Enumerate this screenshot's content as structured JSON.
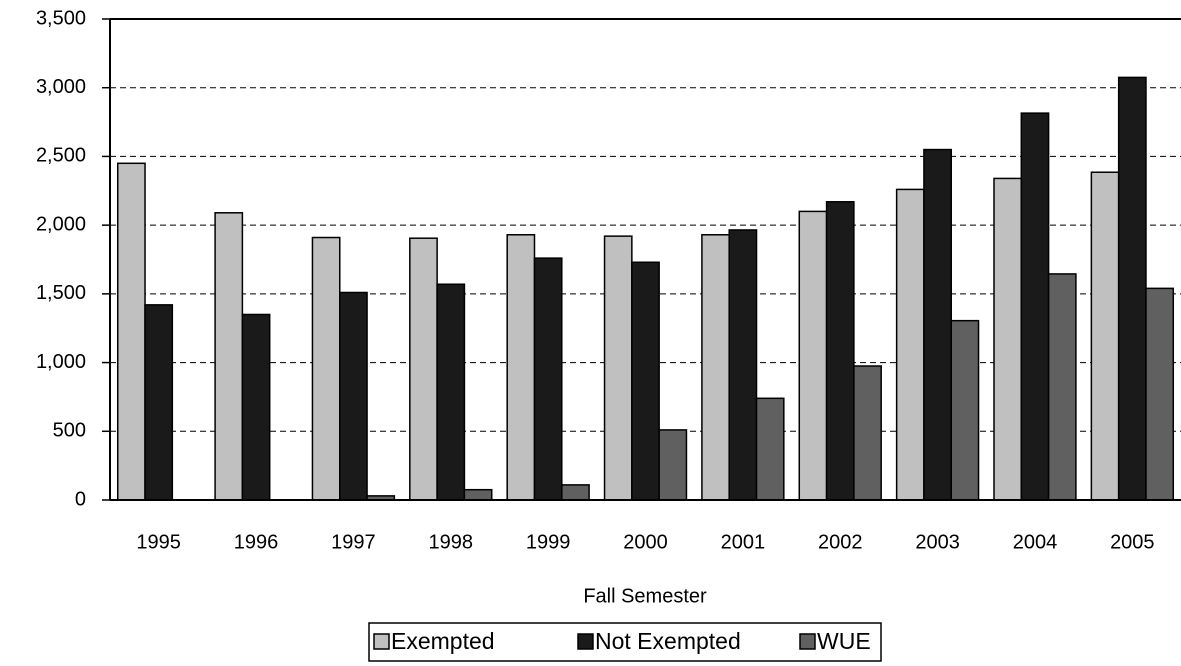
{
  "chart_data": {
    "type": "bar",
    "x_label": "Fall Semester",
    "categories": [
      "1995",
      "1996",
      "1997",
      "1998",
      "1999",
      "2000",
      "2001",
      "2002",
      "2003",
      "2004",
      "2005"
    ],
    "series": [
      {
        "name": "Exempted",
        "color": "#c0c0c0",
        "values": [
          2450,
          2090,
          1910,
          1905,
          1930,
          1920,
          1930,
          2100,
          2260,
          2340,
          2385
        ]
      },
      {
        "name": "Not Exempted",
        "color": "#1a1a1a",
        "values": [
          1420,
          1350,
          1510,
          1570,
          1760,
          1730,
          1965,
          2170,
          2550,
          2815,
          3075
        ]
      },
      {
        "name": "WUE",
        "color": "#606060",
        "values": [
          0,
          0,
          30,
          75,
          110,
          510,
          740,
          975,
          1305,
          1645,
          1540
        ]
      }
    ],
    "ylim": [
      0,
      3500
    ],
    "yticks": [
      0,
      500,
      {
        "value": 1000,
        "label": "1,000"
      },
      {
        "value": 1500,
        "label": "1,500"
      },
      {
        "value": 2000,
        "label": "2,000"
      },
      {
        "value": 2500,
        "label": "2,500"
      },
      {
        "value": 3000,
        "label": "3,000"
      },
      {
        "value": 3500,
        "label": "3,500"
      }
    ],
    "grid": true,
    "legend": "bottom"
  }
}
